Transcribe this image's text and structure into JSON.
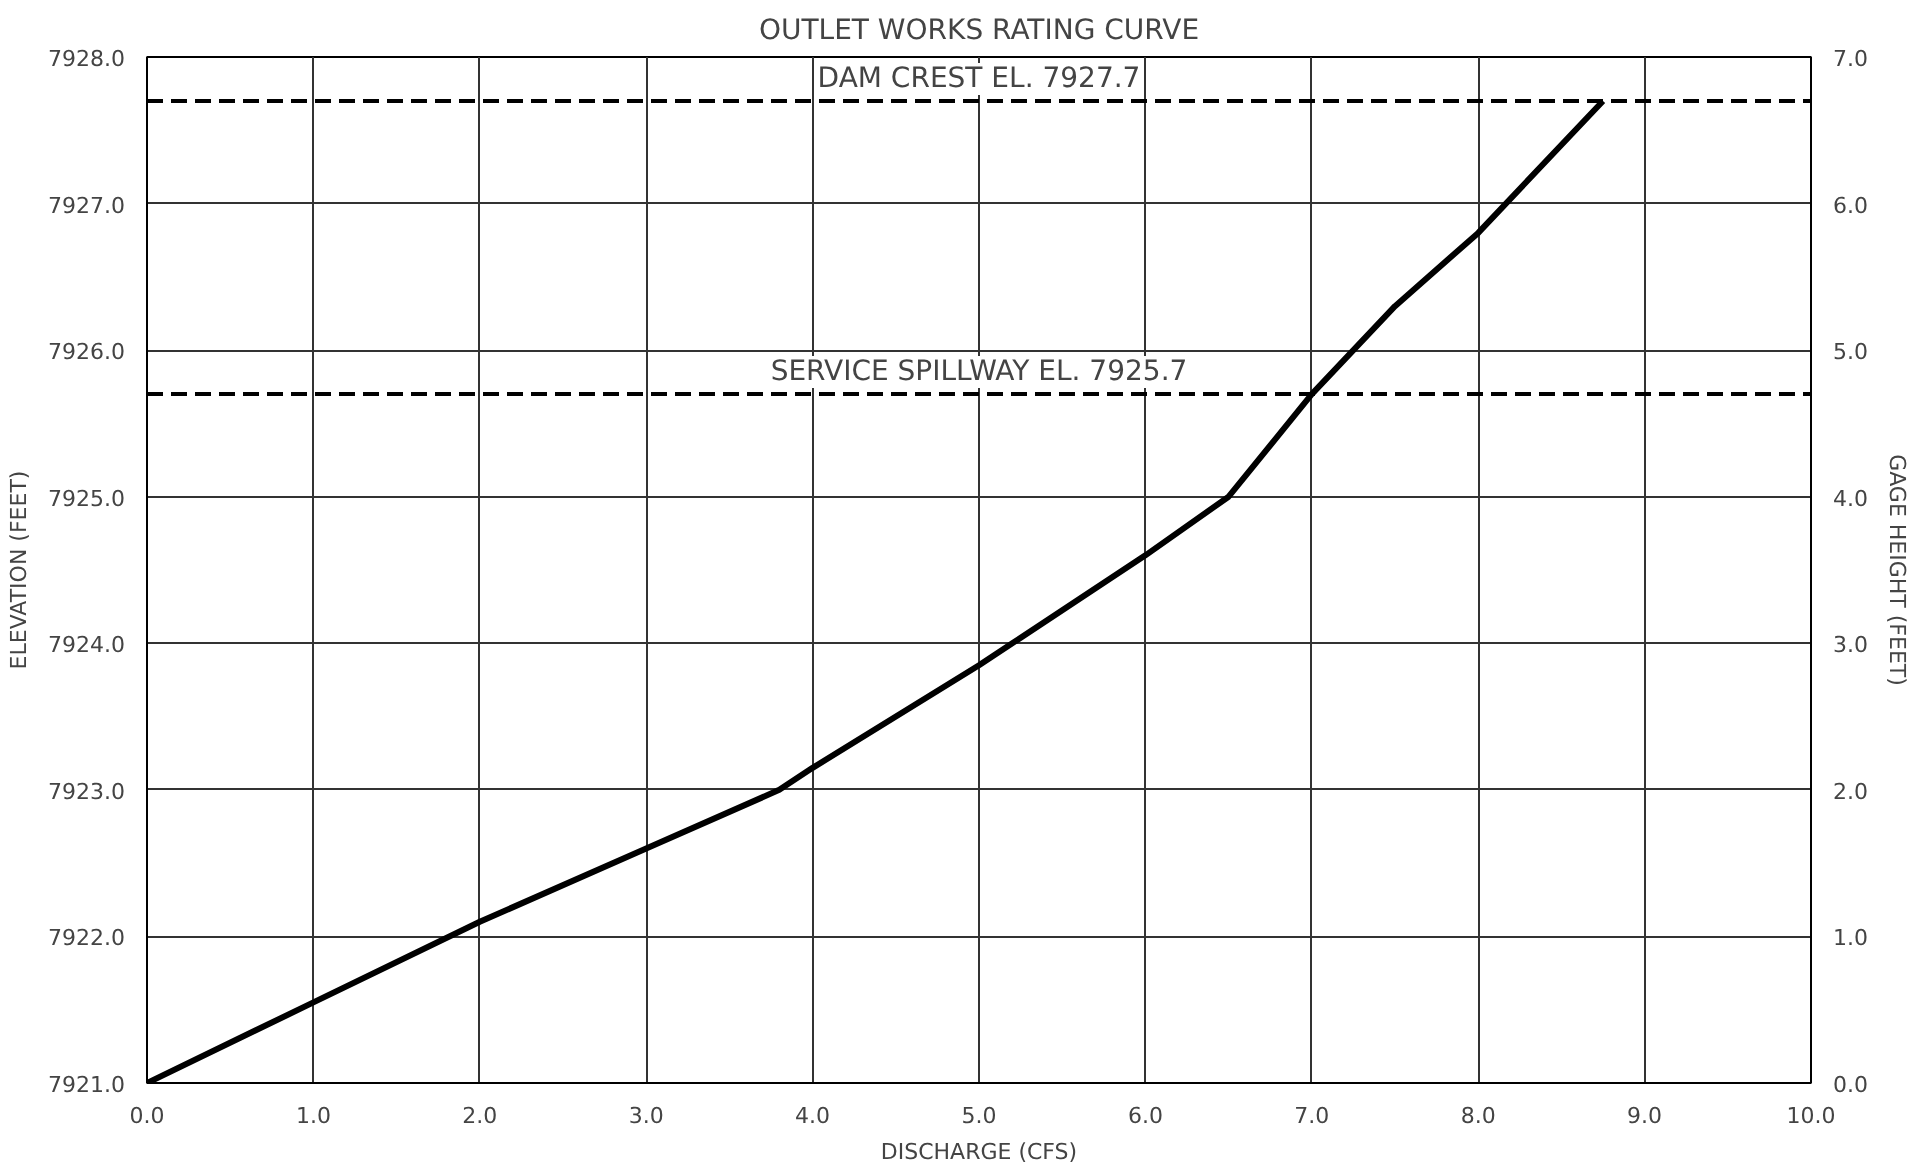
{
  "chart_data": {
    "type": "line",
    "title": "OUTLET WORKS RATING CURVE",
    "xlabel": "DISCHARGE (CFS)",
    "ylabel": "ELEVATION (FEET)",
    "y2label": "GAGE HEIGHT (FEET)",
    "x": [
      0,
      1,
      2,
      3,
      3.8,
      4,
      5,
      5.2,
      6,
      6.5,
      7,
      7.5,
      8,
      8.75
    ],
    "series": [
      {
        "color": "#000000",
        "values": [
          7921,
          7921.55,
          7922.1,
          7922.6,
          7923,
          7923.15,
          7923.85,
          7924,
          7924.6,
          7925,
          7925.7,
          7926.3,
          7926.8,
          7927.7
        ]
      }
    ],
    "xlim": [
      0,
      10
    ],
    "xticks": [
      {
        "value": 0,
        "label": "0.0"
      },
      {
        "value": 1,
        "label": "1.0"
      },
      {
        "value": 2,
        "label": "2.0"
      },
      {
        "value": 3,
        "label": "3.0"
      },
      {
        "value": 4,
        "label": "4.0"
      },
      {
        "value": 5,
        "label": "5.0"
      },
      {
        "value": 6,
        "label": "6.0"
      },
      {
        "value": 7,
        "label": "7.0"
      },
      {
        "value": 8,
        "label": "8.0"
      },
      {
        "value": 9,
        "label": "9.0"
      },
      {
        "value": 10,
        "label": "10.0"
      }
    ],
    "ylim": [
      7921,
      7928
    ],
    "yticks": [
      {
        "value": 7921,
        "label": "7921.0"
      },
      {
        "value": 7922,
        "label": "7922.0"
      },
      {
        "value": 7923,
        "label": "7923.0"
      },
      {
        "value": 7924,
        "label": "7924.0"
      },
      {
        "value": 7925,
        "label": "7925.0"
      },
      {
        "value": 7926,
        "label": "7926.0"
      },
      {
        "value": 7927,
        "label": "7927.0"
      },
      {
        "value": 7928,
        "label": "7928.0"
      }
    ],
    "y2lim": [
      0,
      7
    ],
    "y2ticks": [
      {
        "value": 0,
        "label": "0.0"
      },
      {
        "value": 1,
        "label": "1.0"
      },
      {
        "value": 2,
        "label": "2.0"
      },
      {
        "value": 3,
        "label": "3.0"
      },
      {
        "value": 4,
        "label": "4.0"
      },
      {
        "value": 5,
        "label": "5.0"
      },
      {
        "value": 6,
        "label": "6.0"
      },
      {
        "value": 7,
        "label": "7.0"
      }
    ],
    "ref_lines": [
      {
        "axis": "y",
        "value": 7927.7,
        "label": "DAM CREST EL. 7927.7",
        "color": "#000000",
        "line_style": "dashed"
      },
      {
        "axis": "y",
        "value": 7925.7,
        "label": "SERVICE SPILLWAY EL. 7925.7",
        "color": "#000000",
        "line_style": "dashed"
      }
    ],
    "grid": true,
    "line_style": "solid",
    "marker": "none"
  }
}
